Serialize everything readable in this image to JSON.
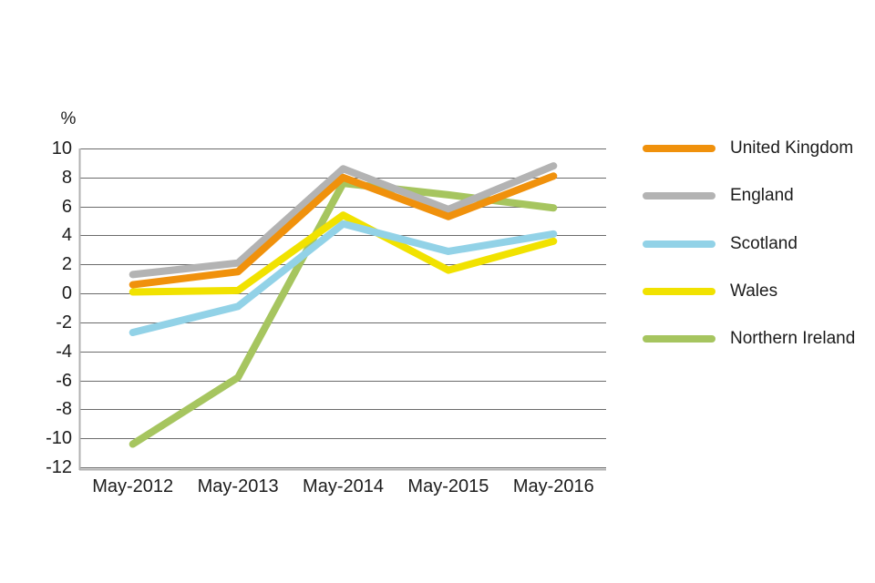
{
  "chart_data": {
    "type": "line",
    "title": "",
    "ylabel": "%",
    "categories": [
      "May-2012",
      "May-2013",
      "May-2014",
      "May-2015",
      "May-2016"
    ],
    "series": [
      {
        "name": "United Kingdom",
        "color": "#F0910C",
        "values": [
          0.6,
          1.5,
          8.0,
          5.3,
          8.1
        ]
      },
      {
        "name": "England",
        "color": "#B3B3B3",
        "values": [
          1.3,
          2.1,
          8.6,
          5.8,
          8.8
        ]
      },
      {
        "name": "Scotland",
        "color": "#92D2E7",
        "values": [
          -2.7,
          -0.9,
          4.8,
          2.9,
          4.1
        ]
      },
      {
        "name": "Wales",
        "color": "#F1E200",
        "values": [
          0.1,
          0.2,
          5.4,
          1.6,
          3.6
        ]
      },
      {
        "name": "Northern Ireland",
        "color": "#A6C55F",
        "values": [
          -10.4,
          -5.8,
          7.6,
          6.8,
          5.9
        ]
      }
    ],
    "draw_order": [
      "Northern Ireland",
      "Wales",
      "Scotland",
      "England",
      "United Kingdom"
    ],
    "ylim": [
      -12,
      10
    ],
    "ytick_step": 2,
    "grid": true,
    "legend_position": "right",
    "gridline_color": "#6b6b6b",
    "axis_color": "#b1b1b1",
    "text_color": "#1c1c1c"
  }
}
